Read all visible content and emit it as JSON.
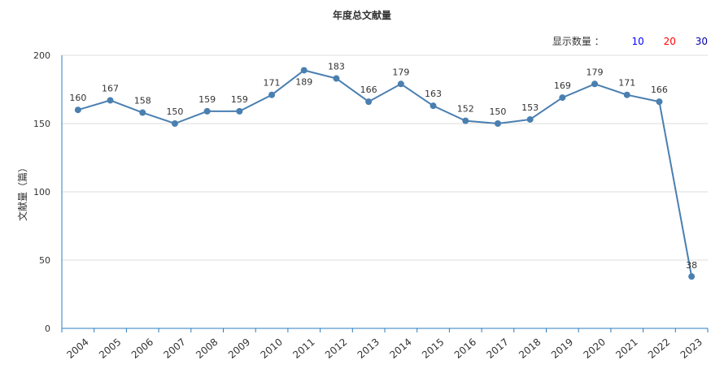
{
  "header": {
    "title": "年度总文献量",
    "display_count_label": "显示数量 ：",
    "display_options": [
      {
        "label": "10",
        "color": "#0000ff"
      },
      {
        "label": "20",
        "color": "#ff0000"
      },
      {
        "label": "30",
        "color": "#0000aa"
      }
    ]
  },
  "chart_data": {
    "type": "line",
    "title": "年度总文献量",
    "xlabel": "",
    "ylabel": "文献量（篇）",
    "ylim": [
      0,
      200
    ],
    "yticks": [
      0,
      50,
      100,
      150,
      200
    ],
    "grid": true,
    "line_color": "#4a7fb0",
    "categories": [
      "2004",
      "2005",
      "2006",
      "2007",
      "2008",
      "2009",
      "2010",
      "2011",
      "2012",
      "2013",
      "2014",
      "2015",
      "2016",
      "2017",
      "2018",
      "2019",
      "2020",
      "2021",
      "2022",
      "2023"
    ],
    "values": [
      160,
      167,
      158,
      150,
      159,
      159,
      171,
      189,
      183,
      166,
      179,
      163,
      152,
      150,
      153,
      169,
      179,
      171,
      166,
      38
    ]
  }
}
